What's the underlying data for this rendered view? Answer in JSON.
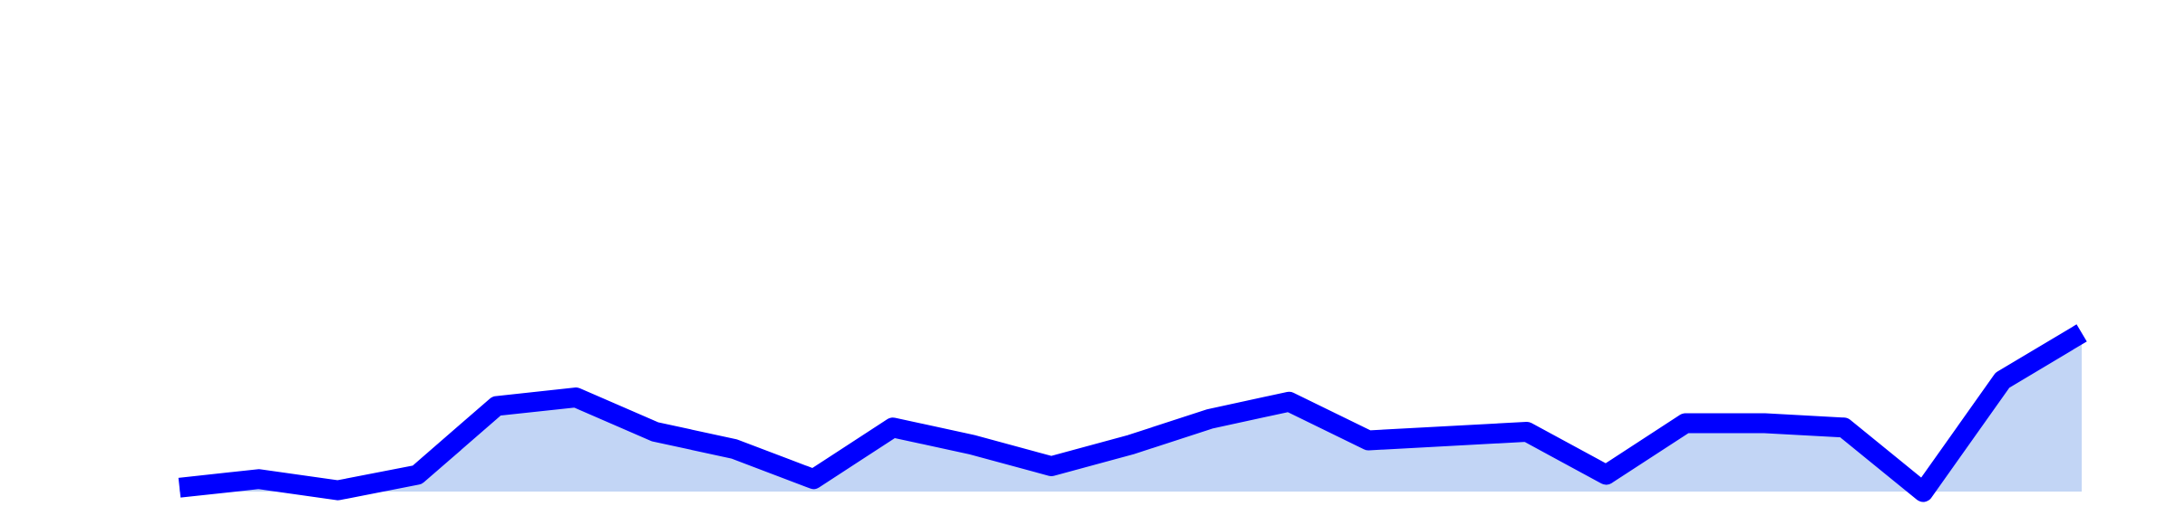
{
  "chart_data": {
    "type": "area",
    "title": "",
    "xlabel": "",
    "ylabel": "",
    "grid": false,
    "legend": "none",
    "axes_visible": false,
    "x": [
      1,
      2,
      3,
      4,
      5,
      6,
      7,
      8,
      9,
      10,
      11,
      12,
      13,
      14,
      15,
      16,
      17,
      18,
      19,
      20,
      21,
      22,
      23,
      24,
      25
    ],
    "series": [
      {
        "values": [
          0.5,
          1.5,
          0.2,
          2.0,
          10.0,
          11.0,
          7.0,
          5.0,
          1.5,
          7.5,
          5.5,
          3.0,
          5.5,
          8.5,
          10.5,
          6.0,
          6.5,
          7.0,
          2.0,
          8.0,
          8.0,
          7.5,
          0.0,
          13.0,
          18.5
        ],
        "line_color": "#0000ff",
        "fill_color": "#c2d5f5"
      }
    ],
    "ylim": [
      -1,
      53
    ]
  }
}
